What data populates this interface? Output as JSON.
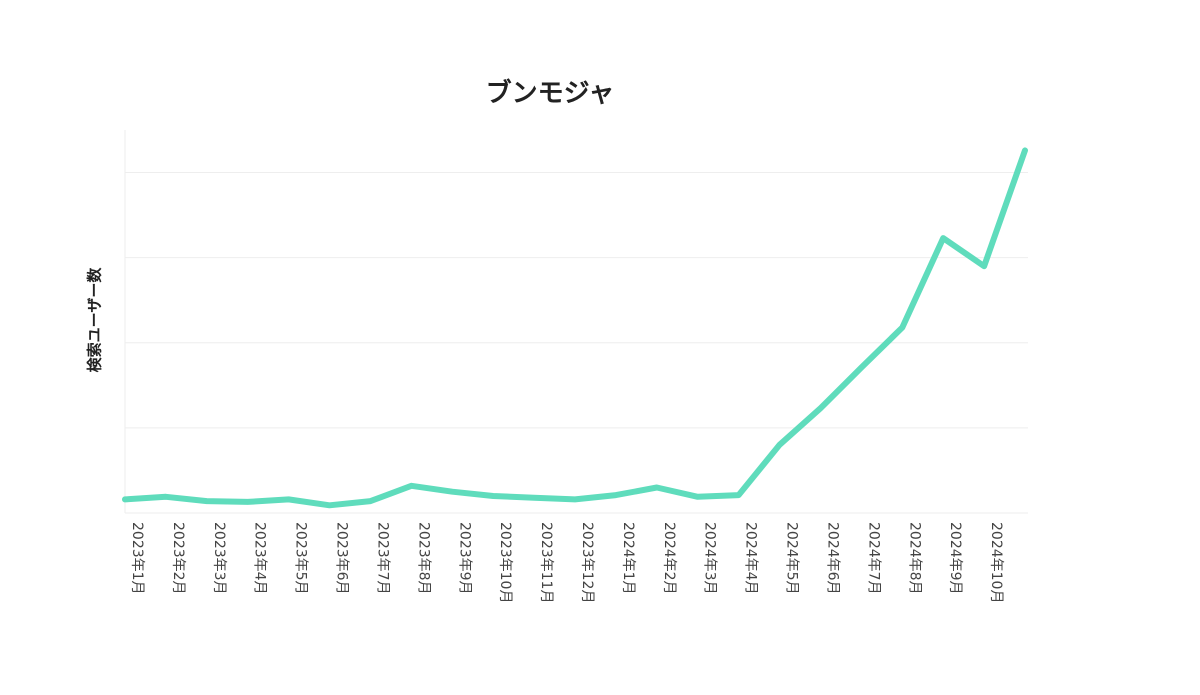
{
  "chart_data": {
    "type": "line",
    "title": "ブンモジャ",
    "y_label": "検索ユーザー数",
    "categories": [
      "2023年1月",
      "2023年2月",
      "2023年3月",
      "2023年4月",
      "2023年5月",
      "2023年6月",
      "2023年7月",
      "2023年8月",
      "2023年9月",
      "2023年10月",
      "2023年11月",
      "2023年12月",
      "2024年1月",
      "2024年2月",
      "2024年3月",
      "2024年4月",
      "2024年5月",
      "2024年6月",
      "2024年7月",
      "2024年8月",
      "2024年9月",
      "2024年10月",
      null
    ],
    "values": [
      0.16,
      0.19,
      0.14,
      0.13,
      0.16,
      0.09,
      0.14,
      0.32,
      0.25,
      0.2,
      0.18,
      0.16,
      0.21,
      0.3,
      0.19,
      0.21,
      0.8,
      1.23,
      1.71,
      2.18,
      3.23,
      2.9,
      4.26
    ],
    "color": "#5fdcbc",
    "ylim": [
      0,
      4.5
    ],
    "yticks": [
      0,
      1,
      2,
      3,
      4
    ],
    "grid": true
  }
}
